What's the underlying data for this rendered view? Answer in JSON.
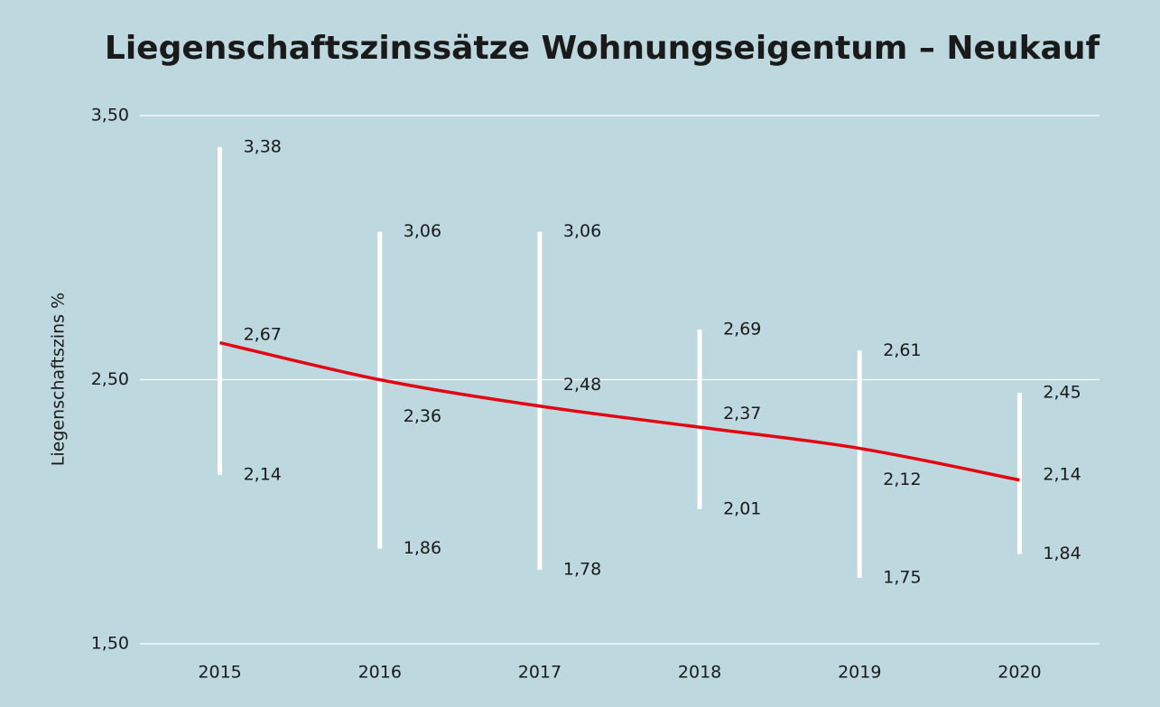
{
  "chart_data": {
    "type": "range",
    "title": "Liegenschaftszinssätze Wohnungseigentum – Neukauf",
    "y_label": "Liegenschaftszins %",
    "categories": [
      "2015",
      "2016",
      "2017",
      "2018",
      "2019",
      "2020"
    ],
    "high": {
      "color": "#ffffff",
      "values": [
        3.38,
        3.06,
        3.06,
        2.69,
        2.61,
        2.45
      ],
      "value_labels": [
        "3,38",
        "3,06",
        "3,06",
        "2,69",
        "2,61",
        "2,45"
      ]
    },
    "low": {
      "color": "#ffffff",
      "values": [
        2.14,
        1.86,
        1.78,
        2.01,
        1.75,
        1.84
      ],
      "value_labels": [
        "2,14",
        "1,86",
        "1,78",
        "2,01",
        "1,75",
        "1,84"
      ]
    },
    "median": {
      "values": [
        2.67,
        2.36,
        2.48,
        2.37,
        2.12,
        2.14
      ],
      "value_labels": [
        "2,67",
        "2,36",
        "2,48",
        "2,37",
        "2,12",
        "2,14"
      ]
    },
    "trend": {
      "color": "#e30613",
      "values": [
        2.64,
        2.5,
        2.4,
        2.32,
        2.24,
        2.12
      ]
    },
    "ylim": [
      1.5,
      3.5
    ],
    "yticks": [
      {
        "value": 1.5,
        "label": "1,50"
      },
      {
        "value": 2.5,
        "label": "2,50"
      },
      {
        "value": 3.5,
        "label": "3,50"
      }
    ],
    "grid": true
  }
}
